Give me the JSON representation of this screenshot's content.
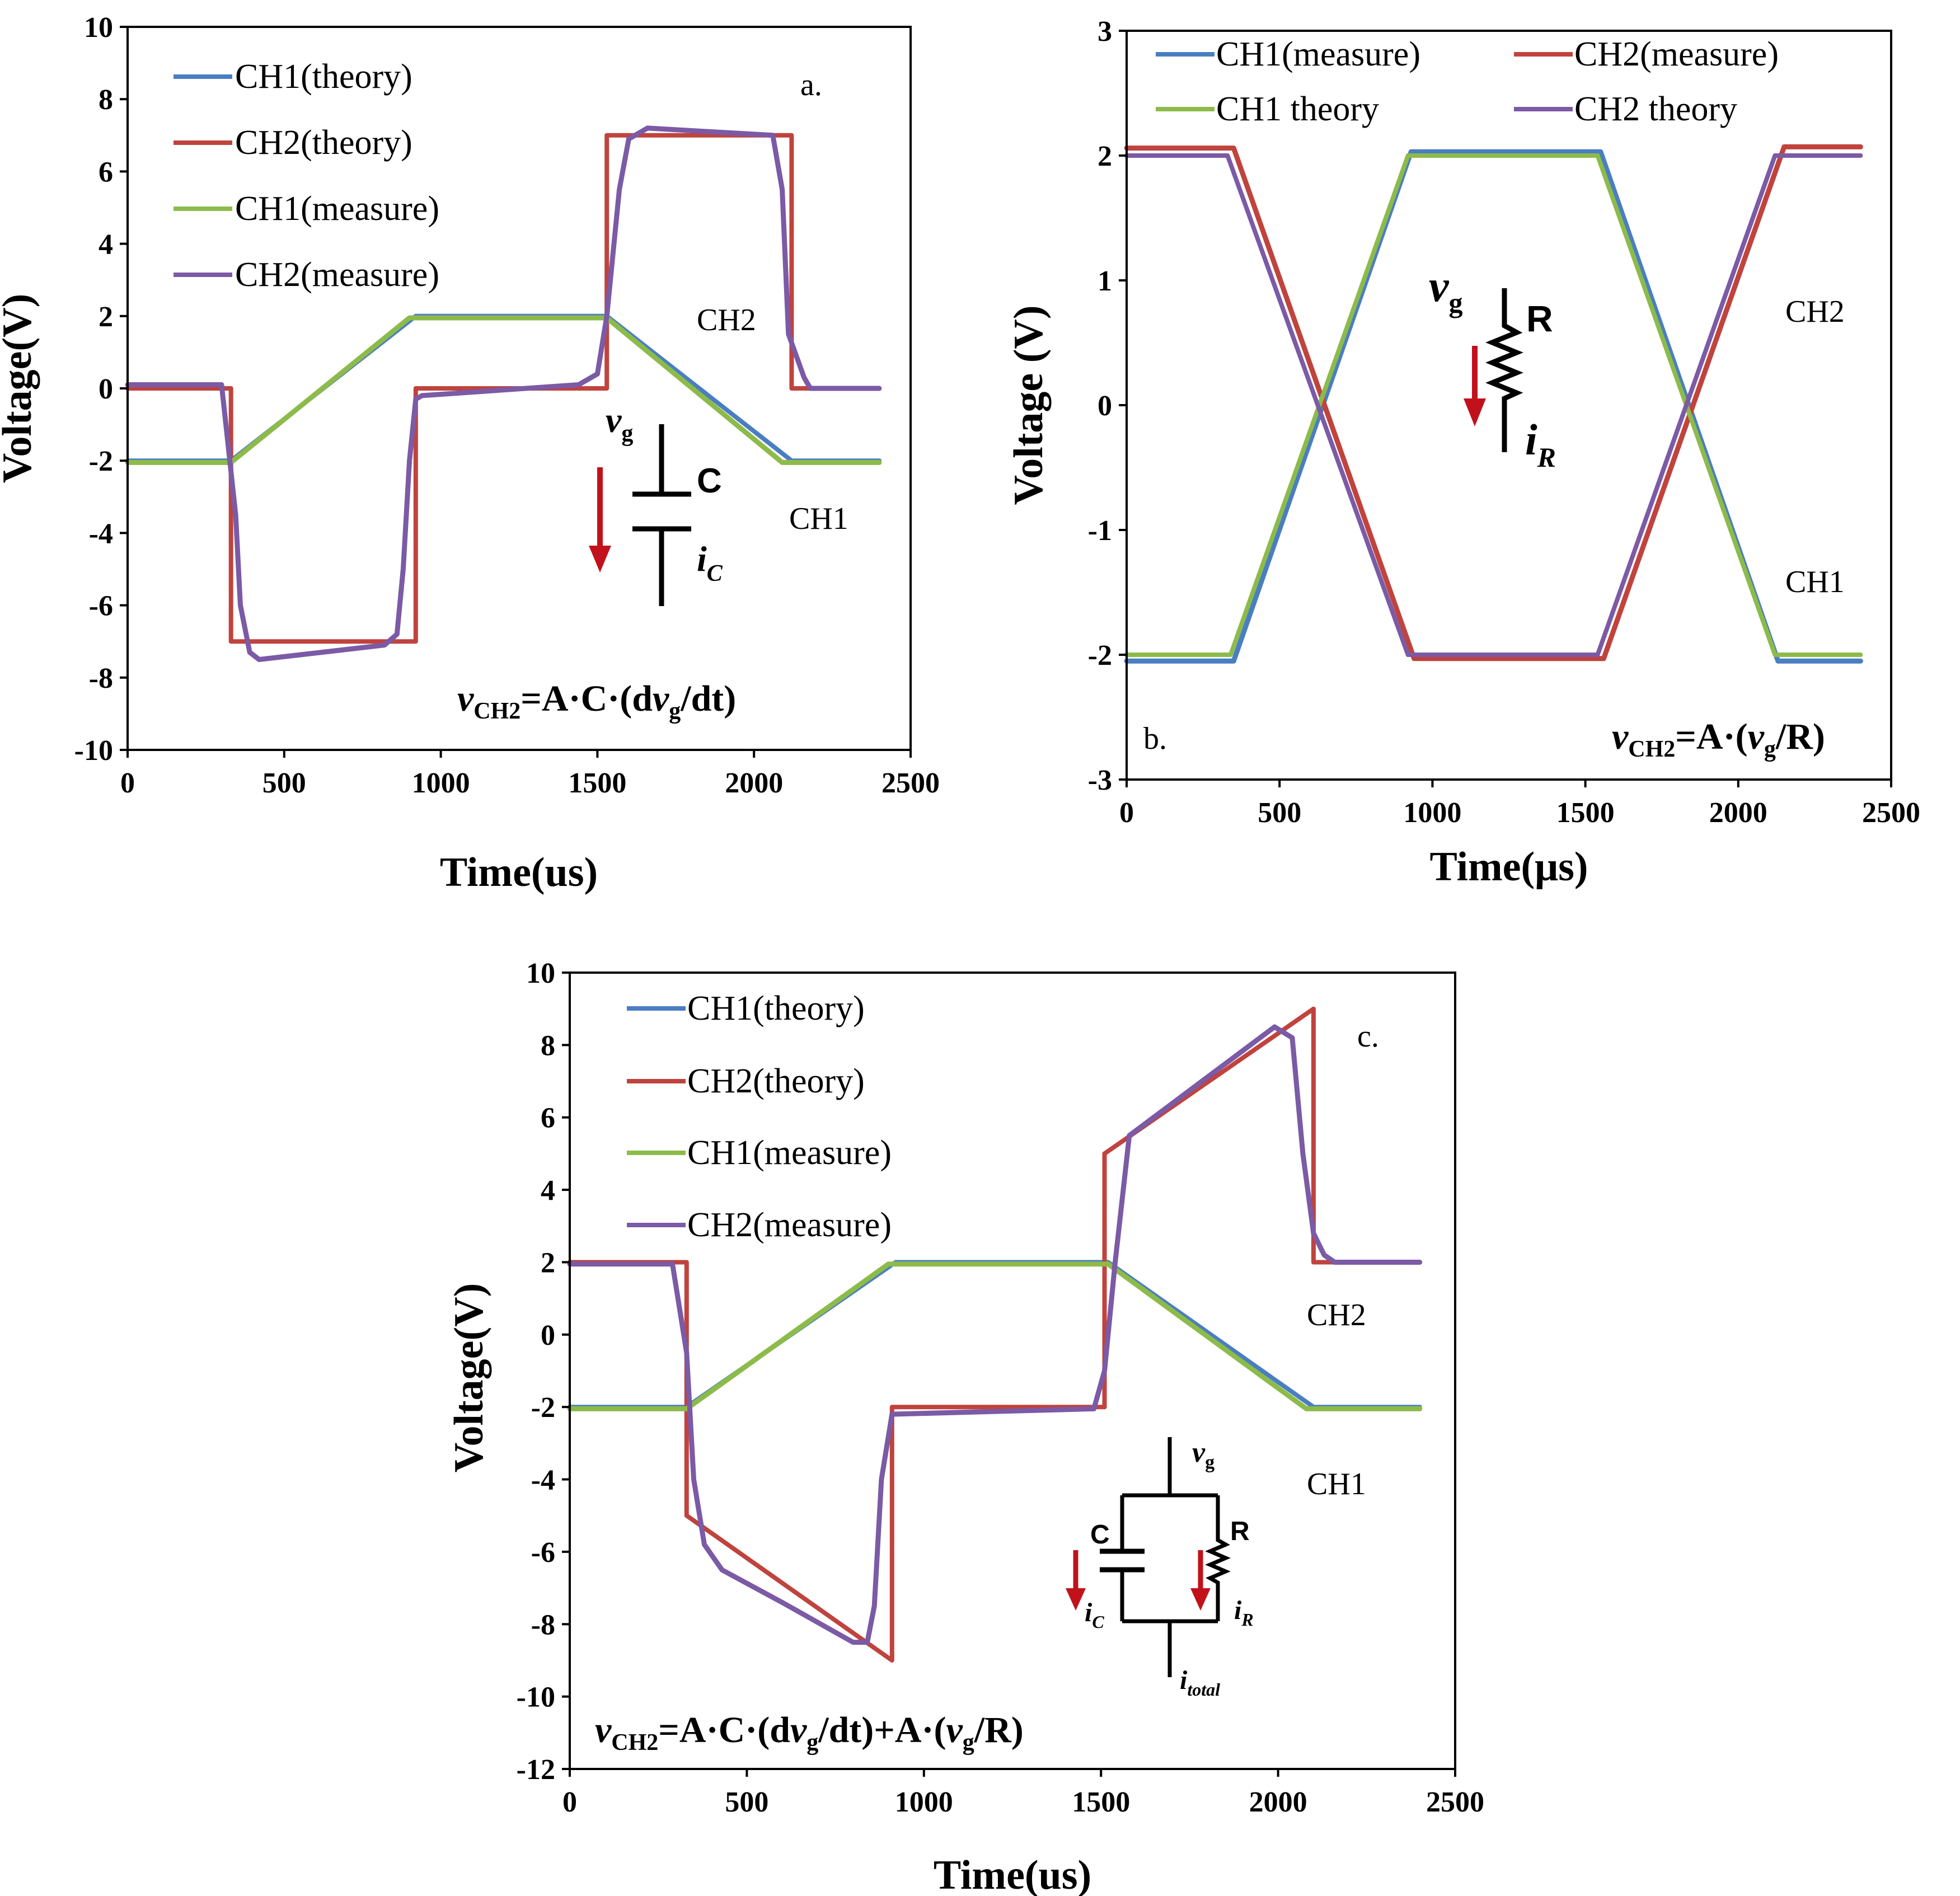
{
  "colors": {
    "blue": "#4a7ec2",
    "red": "#c0433d",
    "green": "#8dbb4a",
    "purple": "#7b5aa6",
    "arrow": "#c1121c"
  },
  "chart_data": [
    {
      "id": "a",
      "type": "line",
      "panel_label": "a.",
      "xlabel": "Time(us)",
      "ylabel": "Voltage(V)",
      "xlim": [
        0,
        2500
      ],
      "ylim": [
        -10,
        10
      ],
      "xticks": [
        0,
        500,
        1000,
        1500,
        2000,
        2500
      ],
      "yticks": [
        -10,
        -8,
        -6,
        -4,
        -2,
        0,
        2,
        4,
        6,
        8,
        10
      ],
      "legend": [
        "CH1(theory)",
        "CH2(theory)",
        "CH1(measure)",
        "CH2(measure)"
      ],
      "series": [
        {
          "name": "CH1(theory)",
          "color": "blue",
          "x": [
            0,
            330,
            920,
            1530,
            2120,
            2400
          ],
          "y": [
            -2,
            -2,
            2,
            2,
            -2,
            -2
          ]
        },
        {
          "name": "CH2(theory)",
          "color": "red",
          "x": [
            0,
            330,
            330,
            920,
            920,
            1530,
            1530,
            2120,
            2120,
            2400
          ],
          "y": [
            0,
            0,
            -7,
            -7,
            0,
            0,
            7,
            7,
            0,
            0
          ]
        },
        {
          "name": "CH1(measure)",
          "color": "green",
          "x": [
            0,
            330,
            900,
            1530,
            2090,
            2400
          ],
          "y": [
            -2.05,
            -2.05,
            1.95,
            1.95,
            -2.05,
            -2.05
          ]
        },
        {
          "name": "CH2(measure)",
          "color": "purple",
          "x": [
            0,
            300,
            345,
            360,
            390,
            420,
            820,
            860,
            880,
            900,
            920,
            940,
            1440,
            1500,
            1530,
            1570,
            1600,
            1660,
            2060,
            2090,
            2110,
            2160,
            2180,
            2400
          ],
          "y": [
            0.1,
            0.1,
            -3.5,
            -6,
            -7.3,
            -7.5,
            -7.1,
            -6.8,
            -5,
            -2,
            -0.3,
            -0.2,
            0.1,
            0.4,
            2,
            5.5,
            6.9,
            7.2,
            7.0,
            5.5,
            1.5,
            0.3,
            0.0,
            0.0
          ]
        }
      ],
      "annotations": [
        {
          "text": "CH2",
          "x": 1940,
          "y": 1.8
        },
        {
          "text": "CH1",
          "x": 2220,
          "y": -3.6
        }
      ],
      "equation": "=A·C·(d",
      "equation_tail": "/dt)",
      "inset": {
        "type": "capacitor",
        "component": "C",
        "source": "v",
        "source_sub": "g",
        "current": "i",
        "current_sub": "C"
      }
    },
    {
      "id": "b",
      "type": "line",
      "panel_label": "b.",
      "xlabel": "Time(μs)",
      "ylabel": "Voltage (V)",
      "xlim": [
        0,
        2500
      ],
      "ylim": [
        -3,
        3
      ],
      "xticks": [
        0,
        500,
        1000,
        1500,
        2000,
        2500
      ],
      "yticks": [
        -3,
        -2,
        -1,
        0,
        1,
        2,
        3
      ],
      "legend": [
        "CH1(measure)",
        "CH2(measure)",
        "CH1 theory",
        "CH2 theory"
      ],
      "series": [
        {
          "name": "CH1(measure)",
          "color": "blue",
          "x": [
            0,
            350,
            930,
            1550,
            2130,
            2400
          ],
          "y": [
            -2.05,
            -2.05,
            2.03,
            2.03,
            -2.05,
            -2.05
          ]
        },
        {
          "name": "CH2(measure)",
          "color": "red",
          "x": [
            0,
            350,
            940,
            1560,
            2150,
            2400
          ],
          "y": [
            2.06,
            2.06,
            -2.03,
            -2.03,
            2.07,
            2.07
          ]
        },
        {
          "name": "CH1 theory",
          "color": "green",
          "x": [
            0,
            340,
            920,
            1540,
            2120,
            2400
          ],
          "y": [
            -2,
            -2,
            2,
            2,
            -2,
            -2
          ]
        },
        {
          "name": "CH2 theory",
          "color": "purple",
          "x": [
            0,
            330,
            920,
            1540,
            2120,
            2400
          ],
          "y": [
            2,
            2,
            -2,
            -2,
            2,
            2
          ]
        }
      ],
      "annotations": [
        {
          "text": "CH2",
          "x": 2180,
          "y": 0.7
        },
        {
          "text": "CH1",
          "x": 2180,
          "y": -1.45
        }
      ],
      "equation": "=A·(",
      "equation_tail": "/R)",
      "inset": {
        "type": "resistor",
        "component": "R",
        "source": "v",
        "source_sub": "g",
        "current": "i",
        "current_sub": "R"
      }
    },
    {
      "id": "c",
      "type": "line",
      "panel_label": "c.",
      "xlabel": "Time(us)",
      "ylabel": "Voltage(V)",
      "xlim": [
        0,
        2500
      ],
      "ylim": [
        -12,
        10
      ],
      "xticks": [
        0,
        500,
        1000,
        1500,
        2000,
        2500
      ],
      "yticks": [
        -12,
        -10,
        -8,
        -6,
        -4,
        -2,
        0,
        2,
        4,
        6,
        8,
        10
      ],
      "legend": [
        "CH1(theory)",
        "CH2(theory)",
        "CH1(measure)",
        "CH2(measure)"
      ],
      "series": [
        {
          "name": "CH1(theory)",
          "color": "blue",
          "x": [
            0,
            330,
            920,
            1520,
            2100,
            2400
          ],
          "y": [
            -2,
            -2,
            2,
            2,
            -2,
            -2
          ]
        },
        {
          "name": "CH2(theory)",
          "color": "red",
          "x": [
            0,
            330,
            330,
            910,
            910,
            1510,
            1510,
            2100,
            2100,
            2400
          ],
          "y": [
            2,
            2,
            -5,
            -9,
            -2,
            -2,
            5,
            9,
            2,
            2
          ]
        },
        {
          "name": "CH1(measure)",
          "color": "green",
          "x": [
            0,
            330,
            900,
            1520,
            2080,
            2400
          ],
          "y": [
            -2.05,
            -2.05,
            1.95,
            1.95,
            -2.05,
            -2.05
          ]
        },
        {
          "name": "CH2(measure)",
          "color": "purple",
          "x": [
            0,
            290,
            330,
            350,
            380,
            430,
            600,
            800,
            840,
            860,
            880,
            910,
            1480,
            1510,
            1540,
            1580,
            1990,
            2040,
            2070,
            2100,
            2130,
            2160,
            2400
          ],
          "y": [
            1.95,
            1.95,
            -0.5,
            -4,
            -5.8,
            -6.5,
            -7.4,
            -8.5,
            -8.5,
            -7.5,
            -4,
            -2.2,
            -2.05,
            -1,
            2,
            5.5,
            8.5,
            8.2,
            5,
            2.8,
            2.2,
            2.0,
            2.0
          ]
        }
      ],
      "annotations": [
        {
          "text": "CH2",
          "x": 2190,
          "y": -1.4
        },
        {
          "text": "CH1",
          "x": 2190,
          "y": -6.1
        }
      ],
      "equation": "=A·C·(d",
      "equation_mid": "/dt)+A·(",
      "equation_tail": "/R)",
      "inset": {
        "type": "parallel-rc",
        "component_c": "C",
        "component_r": "R",
        "source": "v",
        "source_sub": "g",
        "current_c": "i",
        "current_c_sub": "C",
        "current_r": "i",
        "current_r_sub": "R",
        "current_total": "i",
        "current_total_sub": "total"
      }
    }
  ],
  "equation_common": {
    "lhs": "v",
    "lhs_sub": "CH2",
    "var": "v",
    "var_sub": "g"
  }
}
